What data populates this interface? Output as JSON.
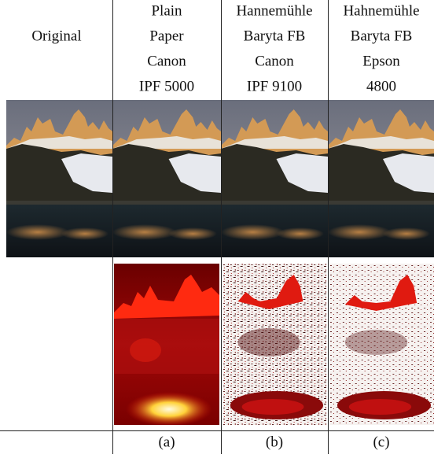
{
  "table": {
    "columns": [
      {
        "lines": [
          "Original"
        ]
      },
      {
        "lines": [
          "Plain",
          "Paper",
          "Canon",
          "IPF 5000"
        ]
      },
      {
        "lines": [
          "Hannemühle",
          "Baryta FB",
          "Canon",
          "IPF 9100"
        ]
      },
      {
        "lines": [
          "Hahnemühle",
          "Baryta FB",
          "Epson",
          "4800"
        ]
      }
    ],
    "captions": [
      "(a)",
      "(b)",
      "(c)"
    ]
  }
}
